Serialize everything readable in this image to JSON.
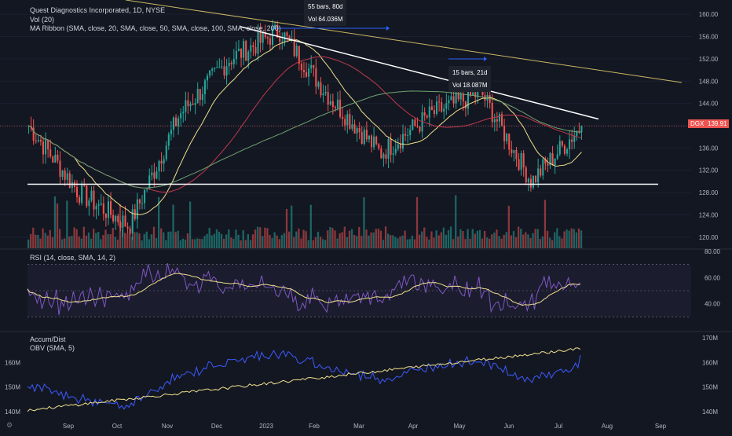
{
  "header": {
    "symbol_line": "Quest Diagnostics Incorporated, 1D, NYSE",
    "vol_label": "Vol (20)",
    "ribbon_label": "MA Ribbon (SMA, close, 20, SMA, close, 50, SMA, close, 100, SMA, close, 200)"
  },
  "price_panel": {
    "ticks": [
      "160.00",
      "156.00",
      "152.00",
      "148.00",
      "144.00",
      "140.00",
      "136.00",
      "132.00",
      "128.00",
      "124.00",
      "120.00"
    ],
    "current_symbol": "DGX",
    "current_price": "139.91"
  },
  "annotations": {
    "range1_bars": "55 bars, 80d",
    "range1_vol": "Vol 64.036M",
    "range2_bars": "15 bars, 21d",
    "range2_vol": "Vol 18.087M"
  },
  "rsi_panel": {
    "label": "RSI (14, close, SMA, 14, 2)",
    "ticks": [
      "80.00",
      "60.00",
      "40.00"
    ]
  },
  "obv_panel": {
    "label1": "Accum/Dist",
    "label2": "OBV (SMA, 5)",
    "left_ticks": [
      "160M",
      "150M",
      "140M"
    ],
    "right_ticks": [
      "170M",
      "160M",
      "150M",
      "140M"
    ]
  },
  "time_axis": [
    "Sep",
    "Oct",
    "Nov",
    "Dec",
    "2023",
    "Feb",
    "Mar",
    "Apr",
    "May",
    "Jun",
    "Jul",
    "Aug",
    "Sep"
  ],
  "colors": {
    "background": "#131722",
    "up": "#26a69a",
    "down": "#ef5350",
    "ma_fast": "#f0e08c",
    "ma_slow": "#c0394b",
    "ma_long": "#6fa36f",
    "trend_upper": "#c9b763",
    "rsi_line": "#7e57c2",
    "obv_line": "#3d5afe"
  },
  "chart_data": {
    "type": "candlestick",
    "title": "Quest Diagnostics Incorporated, 1D, NYSE",
    "x_labels": [
      "Sep",
      "Oct",
      "Nov",
      "Dec",
      "2023",
      "Feb",
      "Mar",
      "Apr",
      "May",
      "Jun",
      "Jul",
      "Aug",
      "Sep"
    ],
    "ylim": [
      118,
      162
    ],
    "close_path_months": [
      "Aug",
      "Sep",
      "Oct",
      "Nov",
      "Dec",
      "Jan",
      "Feb",
      "Mar",
      "Apr",
      "May",
      "Jun",
      "Jul"
    ],
    "close_path_values": [
      140,
      128,
      122,
      142,
      152,
      157,
      145,
      135,
      142,
      146,
      130,
      140
    ],
    "current_price": 139.91,
    "horizontal_support": 129.5,
    "rsi": {
      "ylim": [
        20,
        80
      ],
      "bands": [
        70,
        50,
        30
      ],
      "last": 56
    },
    "obv": {
      "ylim_millions": [
        138,
        172
      ],
      "last_millions": 163
    },
    "measurements": [
      {
        "bars": 55,
        "days": 80,
        "volume": "64.036M"
      },
      {
        "bars": 15,
        "days": 21,
        "volume": "18.087M"
      }
    ]
  }
}
